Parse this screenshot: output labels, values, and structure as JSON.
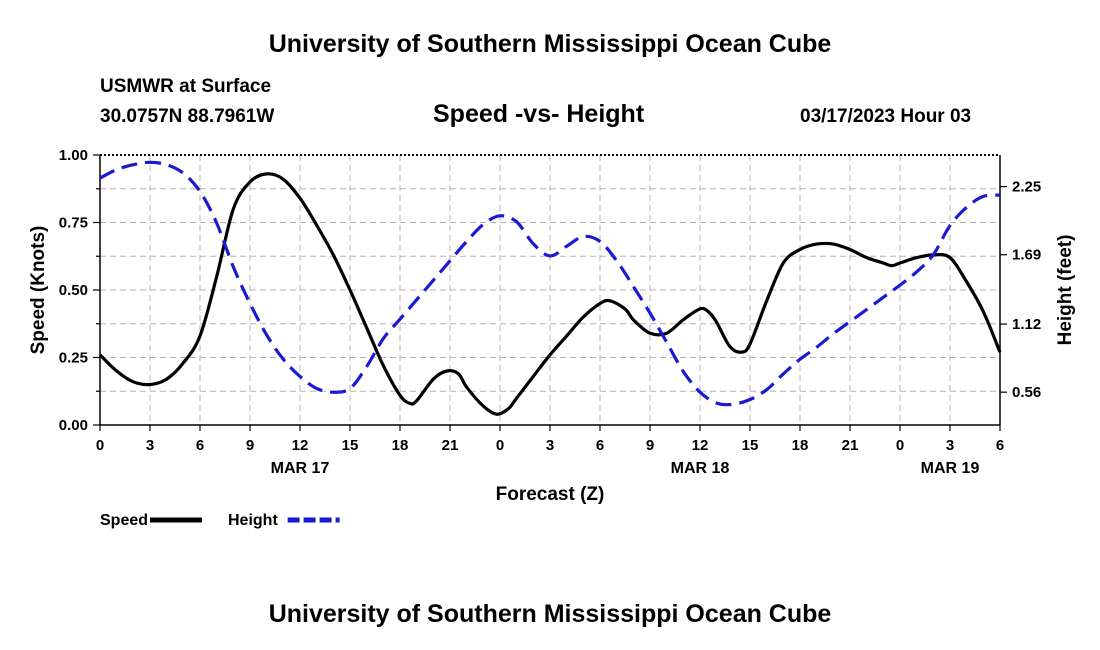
{
  "header": {
    "main_title": "University of Southern Mississippi Ocean Cube",
    "station": "USMWR at Surface",
    "coords": "30.0757N  88.7961W",
    "chart_title": "Speed -vs- Height",
    "datetime": "03/17/2023 Hour 03"
  },
  "footer": {
    "title": "University of Southern Mississippi Ocean Cube"
  },
  "chart_data": {
    "type": "line",
    "title": "Speed -vs- Height",
    "xlabel": "Forecast (Z)",
    "ylabel": "Speed (Knots)",
    "y2label": "Height (feet)",
    "x_range": [
      0,
      54
    ],
    "ylim": [
      0,
      1
    ],
    "y2lim": [
      0.29,
      2.51
    ],
    "x_ticks": [
      0,
      3,
      6,
      9,
      12,
      15,
      18,
      21,
      24,
      27,
      30,
      33,
      36,
      39,
      42,
      45,
      48,
      51,
      54
    ],
    "x_tick_labels": [
      "0",
      "3",
      "6",
      "9",
      "12",
      "15",
      "18",
      "21",
      "0",
      "3",
      "6",
      "9",
      "12",
      "15",
      "18",
      "21",
      "0",
      "3",
      "6"
    ],
    "date_labels": [
      {
        "x": 12,
        "label": "MAR 17"
      },
      {
        "x": 36,
        "label": "MAR 18"
      },
      {
        "x": 51,
        "label": "MAR 19"
      }
    ],
    "y_ticks": [
      0,
      0.25,
      0.5,
      0.75,
      1.0
    ],
    "y_tick_labels": [
      "0.00",
      "0.25",
      "0.50",
      "0.75",
      "1.00"
    ],
    "y2_ticks": [
      0.56,
      1.12,
      1.69,
      2.25
    ],
    "y2_tick_labels": [
      "0.56",
      "1.12",
      "1.69",
      "2.25"
    ],
    "grid": true,
    "series": [
      {
        "name": "Speed",
        "axis": "left",
        "color": "#000000",
        "dashed": false,
        "x": [
          0,
          1,
          2,
          3,
          4,
          5,
          6,
          7,
          8,
          9,
          10,
          11,
          12,
          13,
          14,
          15,
          16,
          17,
          18,
          18.6,
          19,
          20,
          20.8,
          21.5,
          22,
          23,
          23.8,
          24.5,
          25,
          26,
          27,
          28,
          29,
          30,
          30.6,
          31.5,
          32,
          33,
          34,
          35,
          36,
          36.5,
          37,
          37.8,
          38.5,
          39,
          40,
          41,
          42,
          43,
          44,
          45,
          46,
          47,
          47.5,
          48,
          49,
          50,
          51,
          52,
          53,
          54
        ],
        "y": [
          0.26,
          0.2,
          0.16,
          0.15,
          0.17,
          0.23,
          0.33,
          0.55,
          0.8,
          0.9,
          0.93,
          0.91,
          0.84,
          0.74,
          0.63,
          0.5,
          0.36,
          0.22,
          0.11,
          0.08,
          0.09,
          0.17,
          0.2,
          0.19,
          0.14,
          0.07,
          0.04,
          0.06,
          0.1,
          0.18,
          0.26,
          0.33,
          0.4,
          0.45,
          0.46,
          0.43,
          0.39,
          0.34,
          0.34,
          0.39,
          0.43,
          0.42,
          0.38,
          0.29,
          0.27,
          0.3,
          0.46,
          0.6,
          0.65,
          0.67,
          0.67,
          0.65,
          0.62,
          0.6,
          0.59,
          0.6,
          0.62,
          0.63,
          0.62,
          0.53,
          0.42,
          0.27
        ]
      },
      {
        "name": "Height",
        "axis": "right",
        "color": "#1a1ad2",
        "dashed": true,
        "x": [
          0,
          1,
          2,
          3,
          4,
          5,
          6,
          7,
          8,
          9,
          10,
          11,
          12,
          13,
          14,
          15,
          16,
          17,
          18,
          19,
          20,
          21,
          22,
          23,
          24,
          25,
          26,
          27,
          28,
          29,
          30,
          31,
          32,
          33,
          34,
          35,
          36,
          37,
          38,
          39,
          40,
          41,
          42,
          43,
          44,
          45,
          46,
          47,
          48,
          49,
          50,
          51,
          52,
          53,
          54
        ],
        "y": [
          2.32,
          2.39,
          2.43,
          2.45,
          2.43,
          2.36,
          2.21,
          1.95,
          1.59,
          1.29,
          1.03,
          0.83,
          0.69,
          0.59,
          0.56,
          0.59,
          0.77,
          1.0,
          1.16,
          1.32,
          1.48,
          1.64,
          1.8,
          1.94,
          2.01,
          1.96,
          1.78,
          1.68,
          1.76,
          1.84,
          1.8,
          1.64,
          1.43,
          1.21,
          0.97,
          0.73,
          0.56,
          0.47,
          0.46,
          0.5,
          0.58,
          0.71,
          0.83,
          0.93,
          1.04,
          1.14,
          1.24,
          1.34,
          1.44,
          1.55,
          1.69,
          1.93,
          2.08,
          2.17,
          2.18
        ]
      }
    ],
    "legend": {
      "placement": "bottom-left",
      "entries": [
        {
          "label": "Speed",
          "color": "#000000",
          "dashed": false
        },
        {
          "label": "Height",
          "color": "#1a1ad2",
          "dashed": true
        }
      ]
    }
  }
}
